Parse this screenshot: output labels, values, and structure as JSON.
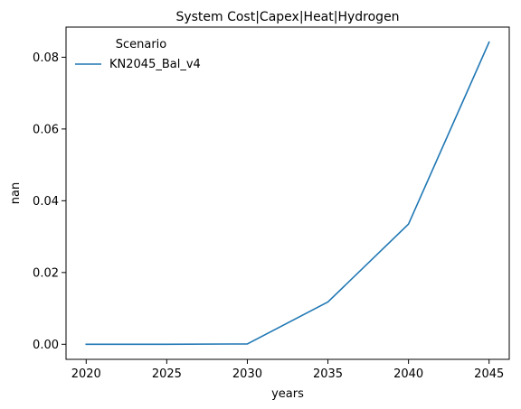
{
  "chart_data": {
    "type": "line",
    "title": "System Cost|Capex|Heat|Hydrogen",
    "xlabel": "years",
    "ylabel": "nan",
    "x": [
      2020,
      2025,
      2030,
      2035,
      2040,
      2045
    ],
    "xticks": [
      "2020",
      "2025",
      "2030",
      "2035",
      "2040",
      "2045"
    ],
    "yticks": [
      "0.00",
      "0.02",
      "0.04",
      "0.06",
      "0.08"
    ],
    "xlim": [
      2018.75,
      2046.25
    ],
    "ylim": [
      -0.0042,
      0.0884
    ],
    "grid": false,
    "legend": {
      "title": "Scenario",
      "placement": "top-left"
    },
    "series": [
      {
        "name": "KN2045_Bal_v4",
        "color": "#1f77b4",
        "values": [
          0.0,
          0.0,
          0.0001,
          0.0118,
          0.0335,
          0.0842
        ]
      }
    ]
  }
}
